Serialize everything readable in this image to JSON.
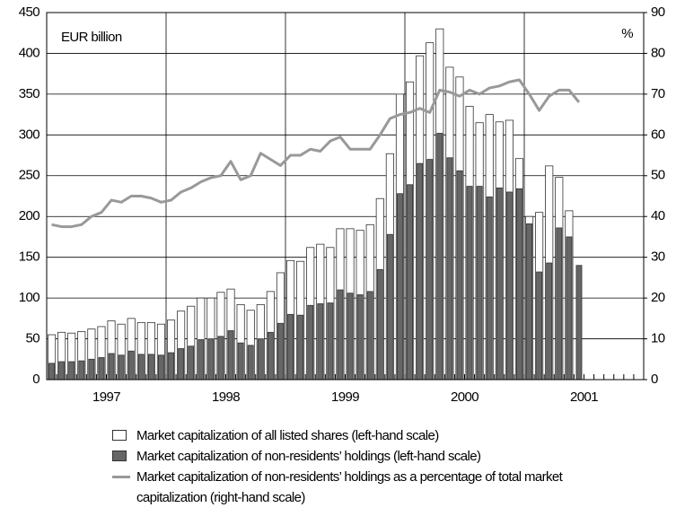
{
  "chart_data": {
    "type": "bar",
    "y_label": "EUR billion",
    "y2_label": "%",
    "categories": [
      null,
      null,
      null,
      null,
      null,
      null,
      "1997",
      null,
      null,
      null,
      null,
      null,
      null,
      null,
      null,
      null,
      null,
      null,
      "1998",
      null,
      null,
      null,
      null,
      null,
      null,
      null,
      null,
      null,
      null,
      null,
      "1999",
      null,
      null,
      null,
      null,
      null,
      null,
      null,
      null,
      null,
      null,
      null,
      "2000",
      null,
      null,
      null,
      null,
      null,
      null,
      null,
      null,
      null,
      null,
      null,
      "2001",
      null,
      null,
      null,
      null,
      null
    ],
    "ylim": [
      0,
      450
    ],
    "yticks": [
      0,
      50,
      100,
      150,
      200,
      250,
      300,
      350,
      400,
      450
    ],
    "y2lim": [
      0,
      90
    ],
    "y2ticks": [
      0,
      10,
      20,
      30,
      40,
      50,
      60,
      70,
      80,
      90
    ],
    "grid": true,
    "series": [
      {
        "name": "Market capitalization of all listed shares (left-hand scale)",
        "type": "bar",
        "color": "#ffffff",
        "values": [
          55,
          58,
          57,
          59,
          62,
          65,
          72,
          68,
          75,
          70,
          70,
          68,
          73,
          84,
          90,
          100,
          100,
          107,
          111,
          92,
          85,
          92,
          108,
          131,
          146,
          145,
          162,
          166,
          162,
          185,
          185,
          183,
          190,
          222,
          277,
          350,
          365,
          397,
          413,
          430,
          383,
          371,
          335,
          315,
          325,
          316,
          318,
          271,
          200,
          205,
          262,
          248,
          207,
          null,
          null,
          null,
          null,
          null,
          null,
          null
        ]
      },
      {
        "name": "Market capitalization of non-residents’ holdings (left-hand scale)",
        "type": "bar",
        "color": "#666666",
        "values": [
          20,
          22,
          22,
          23,
          25,
          27,
          32,
          30,
          35,
          31,
          31,
          30,
          33,
          38,
          41,
          49,
          50,
          53,
          60,
          45,
          42,
          50,
          58,
          69,
          80,
          79,
          91,
          93,
          94,
          110,
          106,
          104,
          108,
          135,
          178,
          228,
          239,
          265,
          270,
          302,
          272,
          256,
          237,
          237,
          224,
          235,
          230,
          234,
          191,
          132,
          143,
          186,
          175,
          140,
          null,
          null,
          null,
          null,
          null,
          null
        ]
      },
      {
        "name": "Market capitalization of non-residents’ holdings as a percentage of total market capitalization (right-hand scale)",
        "type": "line",
        "axis": "y2",
        "color": "#999999",
        "values": [
          38,
          37.5,
          37.5,
          38,
          40,
          41,
          44,
          43.5,
          45,
          45,
          44.5,
          43.5,
          44,
          46,
          47,
          48.5,
          49.5,
          50,
          53.5,
          49,
          50,
          55.5,
          54,
          52.5,
          55,
          55,
          56.5,
          56,
          58.5,
          59.5,
          56.5,
          56.5,
          56.5,
          60,
          64,
          65,
          65.5,
          66.5,
          65.5,
          71,
          70.5,
          69.5,
          71,
          70,
          71.5,
          72,
          73,
          73.5,
          70,
          66,
          69.5,
          71,
          71,
          68,
          null,
          null,
          null,
          null,
          null,
          null
        ]
      }
    ]
  }
}
